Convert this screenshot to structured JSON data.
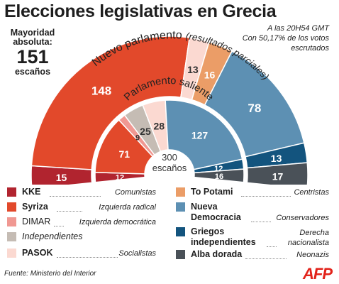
{
  "header": {
    "title": "Elecciones legislativas en Grecia",
    "majority_label": "Mayoridad\nabsoluta:",
    "majority_value": "151",
    "majority_unit": "escaños",
    "time_note": "A las 20H54 GMT\nCon 50,17% de los votos\nescrutados"
  },
  "colors": {
    "KKE": "#b1242f",
    "Syriza": "#e2492b",
    "DIMAR": "#f09892",
    "Independientes": "#c5bcb4",
    "PASOK": "#fbd9d1",
    "To Potami": "#eb9d67",
    "Nueva Democracia": "#5d90b3",
    "Griegos independientes": "#13547e",
    "Alba dorada": "#4a5158"
  },
  "chart_data": [
    {
      "type": "pie",
      "variant": "semicircle-parliament",
      "title": "Nuevo parlamento",
      "subtitle": "(resultados parciales)",
      "categories": [
        "KKE",
        "Syriza",
        "PASOK",
        "To Potami",
        "Nueva Democracia",
        "Griegos independientes",
        "Alba dorada"
      ],
      "values": [
        15,
        148,
        13,
        16,
        78,
        13,
        17
      ]
    },
    {
      "type": "pie",
      "variant": "semicircle-parliament",
      "title": "Parlamento saliente",
      "categories": [
        "KKE",
        "Syriza",
        "DIMAR",
        "Independientes",
        "PASOK",
        "Nueva Democracia",
        "Griegos independientes",
        "Alba dorada"
      ],
      "values": [
        12,
        71,
        9,
        25,
        28,
        127,
        12,
        16
      ],
      "center_label": [
        "300",
        "escaños"
      ]
    }
  ],
  "legend": {
    "left": [
      {
        "name": "KKE",
        "desc": "Comunistas"
      },
      {
        "name": "Syriza",
        "desc": "Izquierda radical"
      },
      {
        "name": "DIMAR",
        "desc": "Izquierda democrática"
      },
      {
        "name": "Independientes",
        "desc": ""
      },
      {
        "name": "PASOK",
        "desc": "Socialistas"
      }
    ],
    "right": [
      {
        "name": "To Potami",
        "desc": "Centristas"
      },
      {
        "name": "Nueva\nDemocracia",
        "desc": "Conservadores"
      },
      {
        "name": "Griegos\nindependientes",
        "desc": "Derecha\nnacionalista"
      },
      {
        "name": "Alba dorada",
        "desc": "Neonazis"
      }
    ]
  },
  "source": "Fuente: Ministerio del Interior",
  "brand": "AFP"
}
